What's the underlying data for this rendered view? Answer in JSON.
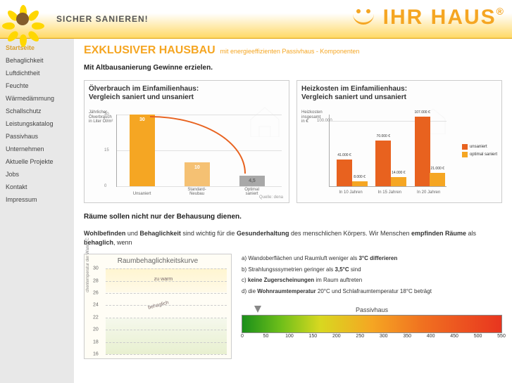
{
  "header": {
    "tagline": "SICHER SANIEREN!",
    "brand": "IHR HAUS",
    "brand_suffix": "®"
  },
  "nav": {
    "items": [
      {
        "label": "Startseite",
        "active": true
      },
      {
        "label": "Behaglichkeit"
      },
      {
        "label": "Luftdichtheit"
      },
      {
        "label": "Feuchte"
      },
      {
        "label": "Wärmedämmung"
      },
      {
        "label": "Schallschutz"
      },
      {
        "label": "Leistungskatalog"
      },
      {
        "label": "Passivhaus"
      },
      {
        "label": "Unternehmen"
      },
      {
        "label": "Aktuelle Projekte"
      },
      {
        "label": "Jobs"
      },
      {
        "label": "Kontakt"
      },
      {
        "label": "Impressum"
      }
    ]
  },
  "page": {
    "title": "EXKLUSIVER HAUSBAU",
    "subtitle": "mit energieeffizienten Passivhaus - Komponenten",
    "section1": "Mit Altbausanierung Gewinne erzielen."
  },
  "chart1": {
    "title_l1": "Ölverbrauch im Einfamilienhaus:",
    "title_l2": "Vergleich saniert und unsaniert",
    "ylabel_l1": "Jährlicher",
    "ylabel_l2": "Ölverbrauch",
    "ylabel_l3": "in Liter Öl/m²",
    "ymax": 30,
    "ytick_mid": 15,
    "categories": [
      "Unsaniert",
      "Standard-Neubau",
      "Optimal saniert"
    ],
    "values": [
      30,
      10,
      4.5
    ],
    "value_labels": [
      "30",
      "10",
      "4,5"
    ],
    "colors": [
      "#f5a623",
      "#f5c173",
      "#a8a8a8"
    ],
    "arc_color": "#e8621f",
    "source": "Quelle: dena"
  },
  "chart2": {
    "title_l1": "Heizkosten im Einfamilienhaus:",
    "title_l2": "Vergleich saniert und unsaniert",
    "ylabel_l1": "Heizkosten",
    "ylabel_l2": "insgesamt",
    "ylabel_l3": "in €",
    "ymax": 110000,
    "ytick_label": "100.000",
    "categories": [
      "In 10 Jahren",
      "In 15 Jahren",
      "In 20 Jahren"
    ],
    "series": {
      "unsaniert": {
        "label": "unsaniert",
        "color": "#e8621f",
        "values": [
          41000,
          70000,
          107000
        ],
        "labels": [
          "41.000 €",
          "70.000 €",
          "107.000 €"
        ]
      },
      "optimal": {
        "label": "optimal saniert",
        "color": "#f5a623",
        "values": [
          8000,
          14000,
          21000
        ],
        "labels": [
          "8.000 €",
          "14.000 €",
          "21.000 €"
        ]
      }
    }
  },
  "section2": {
    "heading": "Räume sollen nicht nur der Behausung dienen.",
    "text_parts": {
      "p1a": "Wohlbefinden",
      "p1b": " und ",
      "p1c": "Behaglichkeit",
      "p1d": " sind wichtig für die ",
      "p1e": "Gesunderhaltung",
      "p1f": " des menschlichen Körpers. Wir Menschen ",
      "p1g": "empfinden Räume",
      "p1h": " als ",
      "p1i": "behaglich",
      "p1j": ", wenn"
    }
  },
  "comfort": {
    "title": "Raumbehaglichkeitskurve",
    "yticks": [
      30,
      28,
      26,
      24,
      22,
      20,
      18,
      16
    ],
    "zone_warm_label": "zu warm",
    "zone_ok_label": "behaglich",
    "ylabel": "chentemperatur der Wand  °C"
  },
  "bullets": {
    "a": {
      "pre": "a) Wandoberflächen und Raumluft weniger als ",
      "b": "3°C differieren"
    },
    "b": {
      "pre": "b) Strahlungsssymetrien geringer als ",
      "b": "3,5°C",
      "post": " sind"
    },
    "c": {
      "pre": "c) ",
      "b": "keine Zugerscheinungen",
      "post": " im Raum auftreten"
    },
    "d": {
      "pre": "d) die ",
      "b": "Wohnraumtemperatur",
      "post": " 20°C und Schlafraumtemperatur 18°C beträgt"
    }
  },
  "spectrum": {
    "label": "Passivhaus",
    "ticks": [
      0,
      50,
      100,
      150,
      200,
      250,
      300,
      350,
      400,
      450,
      500,
      550
    ],
    "arrow_pos_pct": 6
  }
}
